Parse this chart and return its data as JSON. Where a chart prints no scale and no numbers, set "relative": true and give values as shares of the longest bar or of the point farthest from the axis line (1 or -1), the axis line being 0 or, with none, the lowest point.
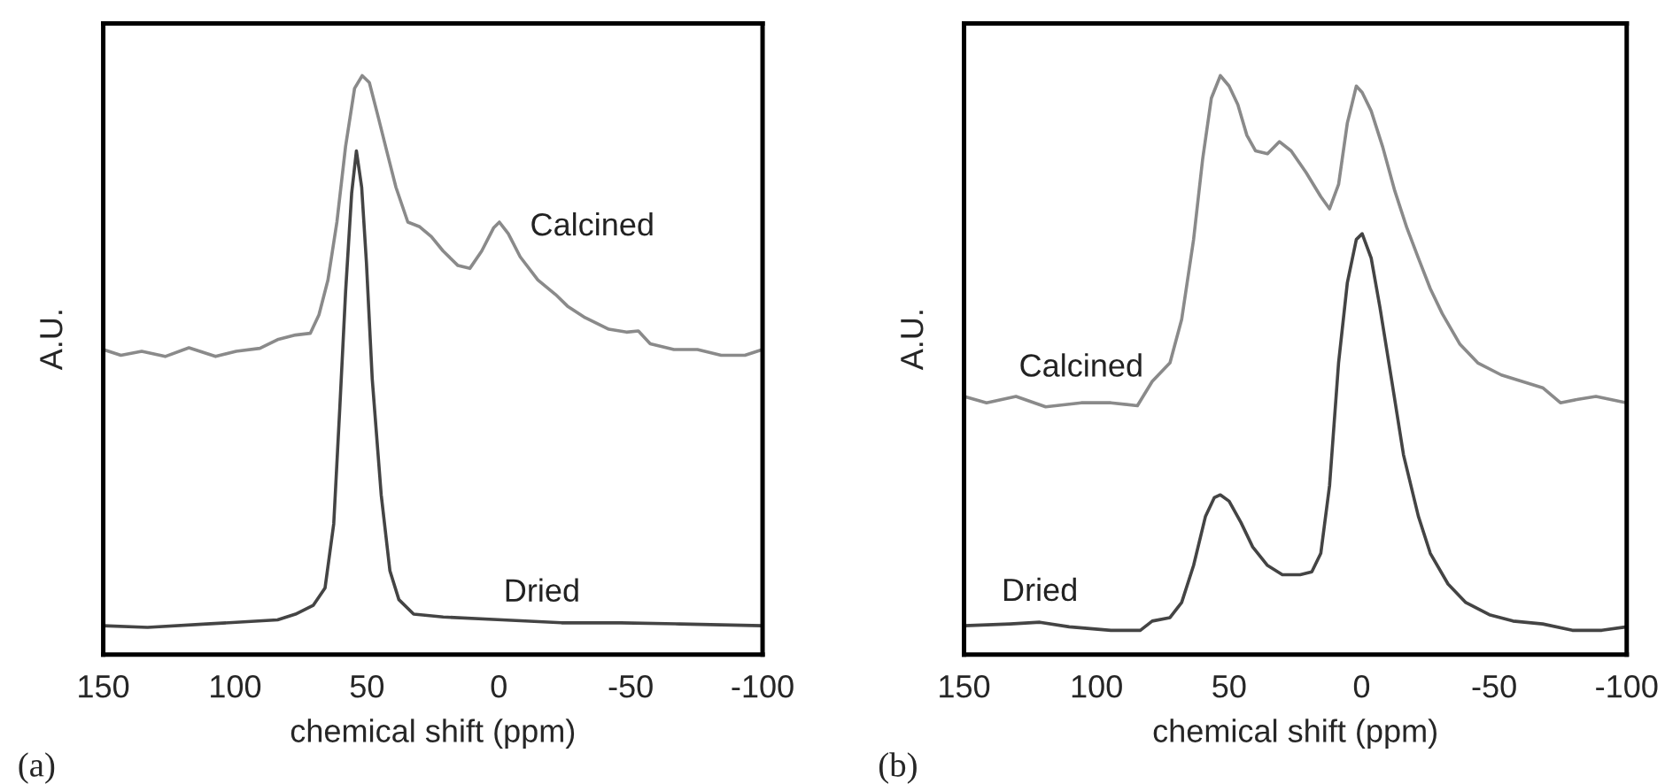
{
  "chart_data": [
    {
      "type": "line",
      "relative": true,
      "xlabel": "chemical shift (ppm)",
      "ylabel": "A.U.",
      "xlim": [
        150,
        -100
      ],
      "xticks": [
        150,
        100,
        50,
        0,
        -50,
        -100
      ],
      "annotations": [
        "(a)"
      ],
      "grid": false,
      "legend": false,
      "series": [
        {
          "name": "Calcined",
          "color": "#8a8a8a",
          "x": [
            150,
            143.3,
            135.4,
            126.5,
            117.5,
            107.4,
            99.6,
            90.6,
            83.9,
            77.1,
            71.5,
            68.2,
            64.8,
            61.4,
            58.1,
            54.7,
            51.8,
            49.1,
            45.7,
            42.4,
            39.0,
            34.5,
            30.0,
            25.6,
            21.1,
            15.5,
            11.0,
            6.5,
            2.0,
            -0.2,
            -3.6,
            -8.1,
            -14.8,
            -21.5,
            -26.0,
            -32.7,
            -41.7,
            -48.4,
            -52.9,
            -57.4,
            -66.4,
            -75.3,
            -84.3,
            -93.3,
            -100
          ],
          "values": [
            0.527,
            0.517,
            0.524,
            0.515,
            0.53,
            0.515,
            0.524,
            0.529,
            0.544,
            0.552,
            0.555,
            0.587,
            0.647,
            0.747,
            0.878,
            0.978,
            1.0,
            0.988,
            0.928,
            0.868,
            0.807,
            0.747,
            0.739,
            0.722,
            0.697,
            0.672,
            0.667,
            0.697,
            0.737,
            0.747,
            0.727,
            0.687,
            0.647,
            0.622,
            0.602,
            0.582,
            0.562,
            0.557,
            0.559,
            0.537,
            0.527,
            0.527,
            0.517,
            0.517,
            0.527
          ]
        },
        {
          "name": "Dried",
          "color": "#444444",
          "x": [
            150,
            133.2,
            110.8,
            83.9,
            77.1,
            70.4,
            65.9,
            62.6,
            60.3,
            58.1,
            55.8,
            54.0,
            52.0,
            50.2,
            48.0,
            44.6,
            41.3,
            37.9,
            32.3,
            21.1,
            -1.3,
            -23.8,
            -46.2,
            -68.6,
            -100
          ],
          "values": [
            0.05,
            0.047,
            0.053,
            0.06,
            0.07,
            0.085,
            0.115,
            0.226,
            0.426,
            0.627,
            0.797,
            0.87,
            0.807,
            0.677,
            0.476,
            0.276,
            0.145,
            0.095,
            0.07,
            0.065,
            0.06,
            0.055,
            0.055,
            0.053,
            0.05
          ]
        }
      ]
    },
    {
      "type": "line",
      "relative": true,
      "xlabel": "chemical shift (ppm)",
      "ylabel": "A.U.",
      "xlim": [
        150,
        -100
      ],
      "xticks": [
        150,
        100,
        50,
        0,
        -50,
        -100
      ],
      "annotations": [
        "(b)"
      ],
      "grid": false,
      "legend": false,
      "series": [
        {
          "name": "Calcined",
          "color": "#8a8a8a",
          "x": [
            150,
            141.5,
            130.4,
            119.2,
            105.8,
            94.6,
            84.6,
            79.0,
            72.3,
            67.9,
            63.4,
            60.0,
            56.7,
            53.3,
            50.0,
            46.7,
            43.3,
            40.0,
            35.5,
            31.0,
            26.6,
            21.0,
            15.4,
            12.1,
            8.7,
            5.4,
            2.0,
            -0.2,
            -3.6,
            -8.0,
            -12.5,
            -17.0,
            -21.4,
            -25.9,
            -30.4,
            -37.1,
            -43.8,
            -52.7,
            -60.5,
            -68.3,
            -75.0,
            -81.7,
            -88.4,
            -100
          ],
          "values": [
            0.446,
            0.435,
            0.446,
            0.428,
            0.435,
            0.435,
            0.43,
            0.472,
            0.504,
            0.579,
            0.717,
            0.855,
            0.961,
            1.0,
            0.982,
            0.95,
            0.897,
            0.87,
            0.865,
            0.886,
            0.87,
            0.833,
            0.791,
            0.77,
            0.812,
            0.918,
            0.982,
            0.971,
            0.939,
            0.876,
            0.801,
            0.738,
            0.685,
            0.632,
            0.589,
            0.536,
            0.504,
            0.483,
            0.472,
            0.461,
            0.435,
            0.441,
            0.446,
            0.435
          ]
        },
        {
          "name": "Dried",
          "color": "#444444",
          "x": [
            150,
            132.6,
            121.4,
            110.3,
            94.6,
            83.5,
            79.0,
            72.3,
            67.9,
            63.4,
            58.9,
            55.6,
            53.3,
            50.0,
            45.5,
            41.1,
            35.5,
            29.9,
            23.2,
            18.8,
            15.4,
            12.1,
            8.7,
            5.4,
            2.0,
            -0.2,
            -3.6,
            -6.9,
            -11.4,
            -15.8,
            -21.4,
            -25.9,
            -32.6,
            -39.3,
            -48.2,
            -57.1,
            -68.3,
            -79.5,
            -90.6,
            -100
          ],
          "values": [
            0.05,
            0.053,
            0.056,
            0.048,
            0.042,
            0.042,
            0.058,
            0.064,
            0.09,
            0.154,
            0.239,
            0.271,
            0.276,
            0.265,
            0.228,
            0.186,
            0.154,
            0.138,
            0.138,
            0.143,
            0.175,
            0.292,
            0.504,
            0.642,
            0.717,
            0.727,
            0.685,
            0.6,
            0.472,
            0.345,
            0.239,
            0.175,
            0.122,
            0.09,
            0.069,
            0.058,
            0.053,
            0.042,
            0.042,
            0.048
          ]
        }
      ]
    }
  ]
}
